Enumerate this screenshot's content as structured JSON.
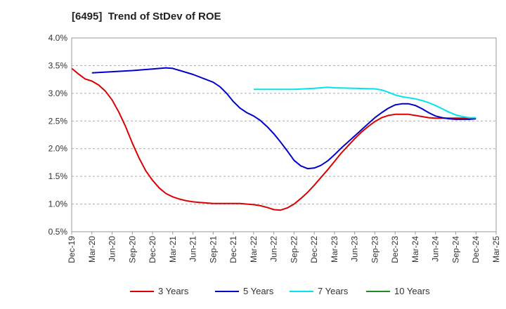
{
  "chart_data": {
    "type": "line",
    "title": "[6495]  Trend of StDev of ROE",
    "xlabel": "",
    "ylabel": "",
    "x_start": "Dec-19",
    "x_end": "Mar-25",
    "x_tick_labels": [
      "Dec-19",
      "Mar-20",
      "Jun-20",
      "Sep-20",
      "Dec-20",
      "Mar-21",
      "Jun-21",
      "Sep-21",
      "Dec-21",
      "Mar-22",
      "Jun-22",
      "Sep-22",
      "Dec-22",
      "Mar-23",
      "Jun-23",
      "Sep-23",
      "Dec-23",
      "Mar-24",
      "Jun-24",
      "Sep-24",
      "Dec-24",
      "Mar-25"
    ],
    "ylim": [
      0.005,
      0.04
    ],
    "y_ticks": [
      0.005,
      0.01,
      0.015,
      0.02,
      0.025,
      0.03,
      0.035,
      0.04
    ],
    "y_tick_labels": [
      "0.5%",
      "1.0%",
      "1.5%",
      "2.0%",
      "2.5%",
      "3.0%",
      "3.5%",
      "4.0%"
    ],
    "grid": "horizontal dashed",
    "legend_position": "bottom",
    "series": [
      {
        "name": "3 Years",
        "color": "#dd0000",
        "points": [
          [
            "Dec-19",
            0.0345
          ],
          [
            "Jan-20",
            0.0335
          ],
          [
            "Feb-20",
            0.0326
          ],
          [
            "Mar-20",
            0.0322
          ],
          [
            "Apr-20",
            0.0315
          ],
          [
            "May-20",
            0.0304
          ],
          [
            "Jun-20",
            0.0288
          ],
          [
            "Jul-20",
            0.0266
          ],
          [
            "Aug-20",
            0.024
          ],
          [
            "Sep-20",
            0.021
          ],
          [
            "Oct-20",
            0.0183
          ],
          [
            "Nov-20",
            0.016
          ],
          [
            "Dec-20",
            0.0143
          ],
          [
            "Jan-21",
            0.0129
          ],
          [
            "Feb-21",
            0.0119
          ],
          [
            "Mar-21",
            0.0113
          ],
          [
            "Apr-21",
            0.0109
          ],
          [
            "May-21",
            0.0106
          ],
          [
            "Jun-21",
            0.0104
          ],
          [
            "Jul-21",
            0.0103
          ],
          [
            "Aug-21",
            0.0102
          ],
          [
            "Sep-21",
            0.0101
          ],
          [
            "Oct-21",
            0.0101
          ],
          [
            "Nov-21",
            0.0101
          ],
          [
            "Dec-21",
            0.0101
          ],
          [
            "Jan-22",
            0.0101
          ],
          [
            "Feb-22",
            0.01
          ],
          [
            "Mar-22",
            0.0099
          ],
          [
            "Apr-22",
            0.0097
          ],
          [
            "May-22",
            0.0094
          ],
          [
            "Jun-22",
            0.009
          ],
          [
            "Jul-22",
            0.0089
          ],
          [
            "Aug-22",
            0.0093
          ],
          [
            "Sep-22",
            0.01
          ],
          [
            "Oct-22",
            0.011
          ],
          [
            "Nov-22",
            0.0121
          ],
          [
            "Dec-22",
            0.0134
          ],
          [
            "Jan-23",
            0.0148
          ],
          [
            "Feb-23",
            0.0162
          ],
          [
            "Mar-23",
            0.0177
          ],
          [
            "Apr-23",
            0.0192
          ],
          [
            "May-23",
            0.0205
          ],
          [
            "Jun-23",
            0.0218
          ],
          [
            "Jul-23",
            0.023
          ],
          [
            "Aug-23",
            0.024
          ],
          [
            "Sep-23",
            0.0249
          ],
          [
            "Oct-23",
            0.0256
          ],
          [
            "Nov-23",
            0.026
          ],
          [
            "Dec-23",
            0.0262
          ],
          [
            "Jan-24",
            0.0262
          ],
          [
            "Feb-24",
            0.0262
          ],
          [
            "Mar-24",
            0.026
          ],
          [
            "Apr-24",
            0.0258
          ],
          [
            "May-24",
            0.0256
          ],
          [
            "Jun-24",
            0.0255
          ],
          [
            "Jul-24",
            0.0255
          ],
          [
            "Aug-24",
            0.0255
          ],
          [
            "Sep-24",
            0.0255
          ],
          [
            "Oct-24",
            0.0255
          ],
          [
            "Nov-24",
            0.0255
          ],
          [
            "Dec-24",
            0.0255
          ]
        ]
      },
      {
        "name": "5 Years",
        "color": "#0000cc",
        "points": [
          [
            "Mar-20",
            0.0337
          ],
          [
            "Jun-20",
            0.0339
          ],
          [
            "Sep-20",
            0.0341
          ],
          [
            "Dec-20",
            0.0344
          ],
          [
            "Feb-21",
            0.0346
          ],
          [
            "Mar-21",
            0.0345
          ],
          [
            "Jun-21",
            0.0334
          ],
          [
            "Sep-21",
            0.032
          ],
          [
            "Oct-21",
            0.0312
          ],
          [
            "Nov-21",
            0.03
          ],
          [
            "Dec-21",
            0.0285
          ],
          [
            "Jan-22",
            0.0273
          ],
          [
            "Feb-22",
            0.0265
          ],
          [
            "Mar-22",
            0.0259
          ],
          [
            "Apr-22",
            0.0251
          ],
          [
            "May-22",
            0.024
          ],
          [
            "Jun-22",
            0.0227
          ],
          [
            "Jul-22",
            0.0212
          ],
          [
            "Aug-22",
            0.0196
          ],
          [
            "Sep-22",
            0.0179
          ],
          [
            "Oct-22",
            0.0169
          ],
          [
            "Nov-22",
            0.0164
          ],
          [
            "Dec-22",
            0.0165
          ],
          [
            "Jan-23",
            0.017
          ],
          [
            "Feb-23",
            0.0178
          ],
          [
            "Mar-23",
            0.0189
          ],
          [
            "Apr-23",
            0.0201
          ],
          [
            "May-23",
            0.0212
          ],
          [
            "Jun-23",
            0.0223
          ],
          [
            "Jul-23",
            0.0234
          ],
          [
            "Aug-23",
            0.0245
          ],
          [
            "Sep-23",
            0.0256
          ],
          [
            "Oct-23",
            0.0265
          ],
          [
            "Nov-23",
            0.0273
          ],
          [
            "Dec-23",
            0.0279
          ],
          [
            "Jan-24",
            0.0281
          ],
          [
            "Feb-24",
            0.0281
          ],
          [
            "Mar-24",
            0.0278
          ],
          [
            "Apr-24",
            0.0272
          ],
          [
            "May-24",
            0.0265
          ],
          [
            "Jun-24",
            0.0259
          ],
          [
            "Jul-24",
            0.0256
          ],
          [
            "Aug-24",
            0.0254
          ],
          [
            "Sep-24",
            0.0253
          ],
          [
            "Oct-24",
            0.0253
          ],
          [
            "Nov-24",
            0.0253
          ],
          [
            "Dec-24",
            0.0254
          ]
        ]
      },
      {
        "name": "7 Years",
        "color": "#00e5ee",
        "points": [
          [
            "Mar-22",
            0.0307
          ],
          [
            "Jun-22",
            0.0307
          ],
          [
            "Sep-22",
            0.0307
          ],
          [
            "Dec-22",
            0.0309
          ],
          [
            "Feb-23",
            0.0311
          ],
          [
            "Mar-23",
            0.031
          ],
          [
            "Jun-23",
            0.0309
          ],
          [
            "Sep-23",
            0.0308
          ],
          [
            "Oct-23",
            0.0306
          ],
          [
            "Nov-23",
            0.0302
          ],
          [
            "Dec-23",
            0.0297
          ],
          [
            "Jan-24",
            0.0294
          ],
          [
            "Feb-24",
            0.0292
          ],
          [
            "Mar-24",
            0.029
          ],
          [
            "Apr-24",
            0.0287
          ],
          [
            "May-24",
            0.0283
          ],
          [
            "Jun-24",
            0.0278
          ],
          [
            "Jul-24",
            0.0272
          ],
          [
            "Aug-24",
            0.0266
          ],
          [
            "Sep-24",
            0.0261
          ],
          [
            "Oct-24",
            0.0258
          ],
          [
            "Nov-24",
            0.0256
          ],
          [
            "Dec-24",
            0.0256
          ]
        ]
      },
      {
        "name": "10 Years",
        "color": "#228b22",
        "points": []
      }
    ]
  }
}
